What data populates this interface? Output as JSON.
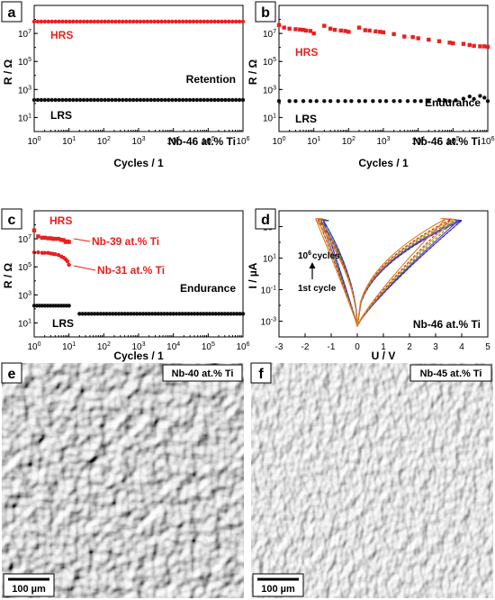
{
  "colors": {
    "hrs": "#e8201e",
    "lrs": "#111111",
    "axis": "#000000",
    "label_box": "#ffffff"
  },
  "chart_data": [
    {
      "panel": "a",
      "type": "scatter",
      "xlabel": "Cycles / 1",
      "ylabel": "R / Ω",
      "x_scale": "log",
      "y_scale": "log",
      "xlim": [
        1,
        1000000
      ],
      "ylim": [
        1,
        1000000000
      ],
      "x_ticks": [
        "10^0",
        "10^1",
        "10^2",
        "10^3",
        "10^4",
        "10^5",
        "10^6"
      ],
      "y_ticks": [
        "10^1",
        "10^3",
        "10^5",
        "10^7"
      ],
      "annotations": [
        "HRS",
        "LRS",
        "Retention",
        "Nb-46 at.% Ti"
      ],
      "series": [
        {
          "name": "HRS",
          "color": "#e8201e",
          "marker": "circle",
          "x_range": [
            1,
            1000000
          ],
          "y": 70000000.0,
          "points": 60
        },
        {
          "name": "LRS",
          "color": "#111111",
          "marker": "circle",
          "x_range": [
            1,
            1000000
          ],
          "y": 180.0,
          "points": 60
        }
      ]
    },
    {
      "panel": "b",
      "type": "scatter",
      "xlabel": "Cycles / 1",
      "ylabel": "R / Ω",
      "x_scale": "log",
      "y_scale": "log",
      "xlim": [
        1,
        1000000
      ],
      "ylim": [
        1,
        1000000000
      ],
      "x_ticks": [
        "10^0",
        "10^1",
        "10^2",
        "10^3",
        "10^4",
        "10^5",
        "10^6"
      ],
      "y_ticks": [
        "10^1",
        "10^3",
        "10^5",
        "10^7"
      ],
      "annotations": [
        "HRS",
        "Endurance",
        "LRS",
        "Nb-46 at.% Ti"
      ],
      "series": [
        {
          "name": "HRS",
          "color": "#e8201e",
          "marker": "square",
          "points_xy": [
            [
              1,
              40000000.0
            ],
            [
              1.4,
              26000000.0
            ],
            [
              2,
              22000000.0
            ],
            [
              3,
              20000000.0
            ],
            [
              4,
              19000000.0
            ],
            [
              5,
              18000000.0
            ],
            [
              6,
              16000000.0
            ],
            [
              8,
              15000000.0
            ],
            [
              10,
              10000000.0
            ],
            [
              20,
              35000000.0
            ],
            [
              30,
              22000000.0
            ],
            [
              40,
              18000000.0
            ],
            [
              60,
              16000000.0
            ],
            [
              80,
              15000000.0
            ],
            [
              100,
              13000000.0
            ],
            [
              200,
              26000000.0
            ],
            [
              300,
              17000000.0
            ],
            [
              400,
              16000000.0
            ],
            [
              600,
              14000000.0
            ],
            [
              800,
              13000000.0
            ],
            [
              1000,
              12000000.0
            ],
            [
              2000,
              9000000.0
            ],
            [
              4000,
              6000000.0
            ],
            [
              7000,
              5500000.0
            ],
            [
              10000,
              4500000.0
            ],
            [
              20000,
              3600000.0
            ],
            [
              40000,
              2800000.0
            ],
            [
              80000,
              2200000.0
            ],
            [
              100000,
              2000000.0
            ],
            [
              200000,
              1800000.0
            ],
            [
              300000,
              1500000.0
            ],
            [
              400000,
              1300000.0
            ],
            [
              600000,
              1200000.0
            ],
            [
              800000,
              1200000.0
            ],
            [
              1000000,
              1100000.0
            ]
          ]
        },
        {
          "name": "LRS",
          "color": "#111111",
          "marker": "circle",
          "points_xy": [
            [
              1,
              150.0
            ],
            [
              2,
              150.0
            ],
            [
              3,
              150.0
            ],
            [
              5,
              150.0
            ],
            [
              8,
              150.0
            ],
            [
              12,
              150.0
            ],
            [
              20,
              150.0
            ],
            [
              30,
              150.0
            ],
            [
              50,
              150.0
            ],
            [
              80,
              150.0
            ],
            [
              120,
              150.0
            ],
            [
              200,
              150.0
            ],
            [
              300,
              150.0
            ],
            [
              500,
              150.0
            ],
            [
              800,
              150.0
            ],
            [
              1200,
              150.0
            ],
            [
              2000,
              150.0
            ],
            [
              3000,
              150.0
            ],
            [
              5000,
              150.0
            ],
            [
              8000,
              150.0
            ],
            [
              12000,
              150.0
            ],
            [
              20000,
              160.0
            ],
            [
              40000,
              180.0
            ],
            [
              60000,
              160.0
            ],
            [
              80000,
              150.0
            ],
            [
              120000,
              170.0
            ],
            [
              200000,
              220.0
            ],
            [
              300000,
              320.0
            ],
            [
              400000,
              210.0
            ],
            [
              600000,
              350.0
            ],
            [
              800000,
              260.0
            ],
            [
              1000000,
              150.0
            ]
          ]
        }
      ]
    },
    {
      "panel": "c",
      "type": "scatter",
      "xlabel": "Cycles / 1",
      "ylabel": "R / Ω",
      "x_scale": "log",
      "y_scale": "log",
      "xlim": [
        1,
        1000000
      ],
      "ylim": [
        1,
        1000000000
      ],
      "x_ticks": [
        "10^0",
        "10^1",
        "10^2",
        "10^3",
        "10^4",
        "10^5",
        "10^6"
      ],
      "y_ticks": [
        "10^1",
        "10^3",
        "10^5",
        "10^7"
      ],
      "annotations": [
        "HRS",
        "Nb-39 at.% Ti",
        "Nb-31 at.% Ti",
        "Endurance",
        "LRS"
      ],
      "series": [
        {
          "name": "Nb-39 at.% Ti HRS",
          "color": "#e8201e",
          "marker": "square",
          "points_xy": [
            [
              1,
              40000000.0
            ],
            [
              1.3,
              15000000.0
            ],
            [
              1.7,
              12000000.0
            ],
            [
              2,
              12000000.0
            ],
            [
              2.5,
              11000000.0
            ],
            [
              3,
              11000000.0
            ],
            [
              3.5,
              10000000.0
            ],
            [
              4,
              10000000.0
            ],
            [
              5,
              10000000.0
            ],
            [
              6,
              8500000.0
            ],
            [
              7,
              8000000.0
            ],
            [
              8,
              6000000.0
            ],
            [
              9,
              6500000.0
            ],
            [
              10,
              6000000.0
            ]
          ]
        },
        {
          "name": "Nb-31 at.% Ti HRS",
          "color": "#e8201e",
          "marker": "circle",
          "points_xy": [
            [
              1,
              1100000.0
            ],
            [
              1.3,
              1100000.0
            ],
            [
              1.7,
              1000000.0
            ],
            [
              2,
              1000000.0
            ],
            [
              2.5,
              1000000.0
            ],
            [
              3,
              900000.0
            ],
            [
              3.5,
              850000.0
            ],
            [
              4,
              800000.0
            ],
            [
              5,
              700000.0
            ],
            [
              6,
              550000.0
            ],
            [
              7,
              450000.0
            ],
            [
              8,
              350000.0
            ],
            [
              9,
              250000.0
            ],
            [
              10,
              140000.0
            ]
          ]
        },
        {
          "name": "LRS",
          "color": "#111111",
          "marker": "circle",
          "x_range": [
            1,
            10
          ],
          "y": 170.0,
          "points": 14
        },
        {
          "name": "LRS high-cycle",
          "color": "#111111",
          "marker": "circle",
          "x_range": [
            20,
            1000000
          ],
          "y": 45.0,
          "points": 55
        }
      ]
    },
    {
      "panel": "d",
      "type": "line",
      "xlabel": "U / V",
      "ylabel": "I / µA",
      "x_scale": "linear",
      "y_scale": "log",
      "xlim": [
        -3,
        5
      ],
      "ylim": [
        0.0001,
        10000
      ],
      "x_ticks": [
        "-3",
        "-2",
        "-1",
        "0",
        "1",
        "2",
        "3",
        "4",
        "5"
      ],
      "y_ticks": [
        "10^-3",
        "10^-1",
        "10^1",
        "10^3"
      ],
      "annotations": [
        "10^6 cycles",
        "1st cycle",
        "Nb-46 at.% Ti"
      ],
      "series": [
        {
          "color": "#3b3fd6",
          "vmin": -1.3,
          "vmax": 4.0,
          "peak": 2500
        },
        {
          "color": "#2a2aa8",
          "vmin": -1.3,
          "vmax": 4.0,
          "peak": 2400
        },
        {
          "color": "#7d2fb0",
          "vmin": -1.4,
          "vmax": 3.9,
          "peak": 2600
        },
        {
          "color": "#2f9e3a",
          "vmin": -1.4,
          "vmax": 3.8,
          "peak": 2800
        },
        {
          "color": "#c4b21e",
          "vmin": -1.5,
          "vmax": 3.7,
          "peak": 3000
        },
        {
          "color": "#e8201e",
          "vmin": -1.5,
          "vmax": 3.6,
          "peak": 3000
        },
        {
          "color": "#e07a1a",
          "vmin": -1.6,
          "vmax": 3.4,
          "peak": 3200
        }
      ]
    }
  ],
  "panels": {
    "a": {
      "letter": "a",
      "hrs": "HRS",
      "lrs": "LRS",
      "mode": "Retention",
      "material": "Nb-46 at.% Ti"
    },
    "b": {
      "letter": "b",
      "hrs": "HRS",
      "lrs": "LRS",
      "mode": "Endurance",
      "material": "Nb-46 at.% Ti"
    },
    "c": {
      "letter": "c",
      "hrs": "HRS",
      "lrs": "LRS",
      "mode": "Endurance",
      "label39": "Nb-39 at.% Ti",
      "label31": "Nb-31 at.% Ti"
    },
    "d": {
      "letter": "d",
      "cycles_label": "cycles",
      "cycles_base": "10",
      "cycles_exp": "6",
      "first_cycle": "1st cycle",
      "material": "Nb-46 at.% Ti"
    },
    "e": {
      "letter": "e",
      "material": "Nb-40 at.% Ti",
      "scale_bar": "100 µm"
    },
    "f": {
      "letter": "f",
      "material": "Nb-45 at.% Ti",
      "scale_bar": "100 µm"
    }
  },
  "axis_text": {
    "x_cycles": "Cycles / 1",
    "y_r": "R / Ω",
    "x_u": "U / V",
    "y_i": "I / µA"
  }
}
